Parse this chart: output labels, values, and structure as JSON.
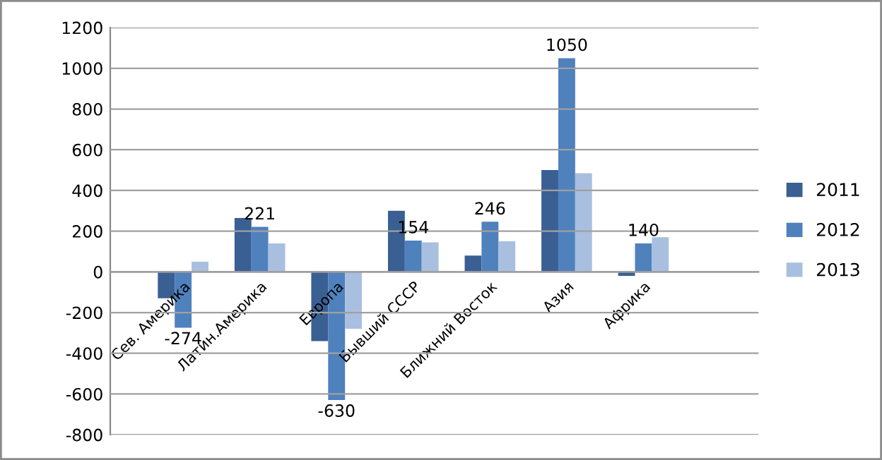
{
  "chart_data": {
    "type": "bar",
    "categories": [
      "Сев. Америка",
      "Латин.Америка",
      "Европа",
      "Бывший СССР",
      "Ближний Восток",
      "Азия",
      "Африка",
      null
    ],
    "series": [
      {
        "name": "2011",
        "color": "#3a5f93",
        "values": [
          -130,
          265,
          -340,
          300,
          80,
          500,
          -20,
          null
        ]
      },
      {
        "name": "2012",
        "color": "#4f81bd",
        "values": [
          -274,
          221,
          -630,
          154,
          246,
          1050,
          140,
          null
        ],
        "value_labels": [
          "-274",
          "221",
          "-630",
          "154",
          "246",
          "1050",
          "140",
          null
        ]
      },
      {
        "name": "2013",
        "color": "#a9bfe0",
        "values": [
          50,
          140,
          -280,
          145,
          150,
          485,
          170,
          null
        ]
      }
    ],
    "ylim": [
      -800,
      1200
    ],
    "yticks": [
      -800,
      -600,
      -400,
      -200,
      0,
      200,
      400,
      600,
      800,
      1000,
      1200
    ],
    "grid": "y",
    "legend": "right"
  }
}
